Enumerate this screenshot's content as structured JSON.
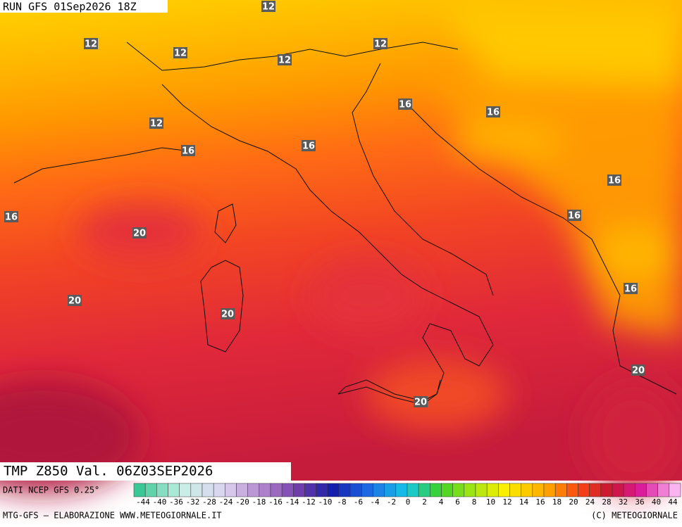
{
  "header": {
    "run": "RUN GFS 01Sep2026 18Z"
  },
  "map": {
    "contour_labels": [
      "12",
      "12",
      "12",
      "12",
      "12",
      "12",
      "16",
      "16",
      "16",
      "16",
      "16",
      "16",
      "16",
      "16",
      "20",
      "20",
      "20",
      "20",
      "20"
    ]
  },
  "footer": {
    "title": "TMP  Z850  Val. 06Z03SEP2026",
    "source": "DATI NCEP GFS 0.25°",
    "credit_left": "MTG-GFS — ELABORAZIONE WWW.METEOGIORNALE.IT",
    "credit_right": "(C) METEOGIORNALE"
  },
  "colorbar": {
    "labels": [
      "-44",
      "-40",
      "-36",
      "-32",
      "-28",
      "-24",
      "-20",
      "-18",
      "-16",
      "-14",
      "-12",
      "-10",
      "-8",
      "-6",
      "-4",
      "-2",
      "0",
      "2",
      "4",
      "6",
      "8",
      "10",
      "12",
      "14",
      "16",
      "18",
      "20",
      "24",
      "28",
      "32",
      "36",
      "40",
      "44"
    ]
  }
}
